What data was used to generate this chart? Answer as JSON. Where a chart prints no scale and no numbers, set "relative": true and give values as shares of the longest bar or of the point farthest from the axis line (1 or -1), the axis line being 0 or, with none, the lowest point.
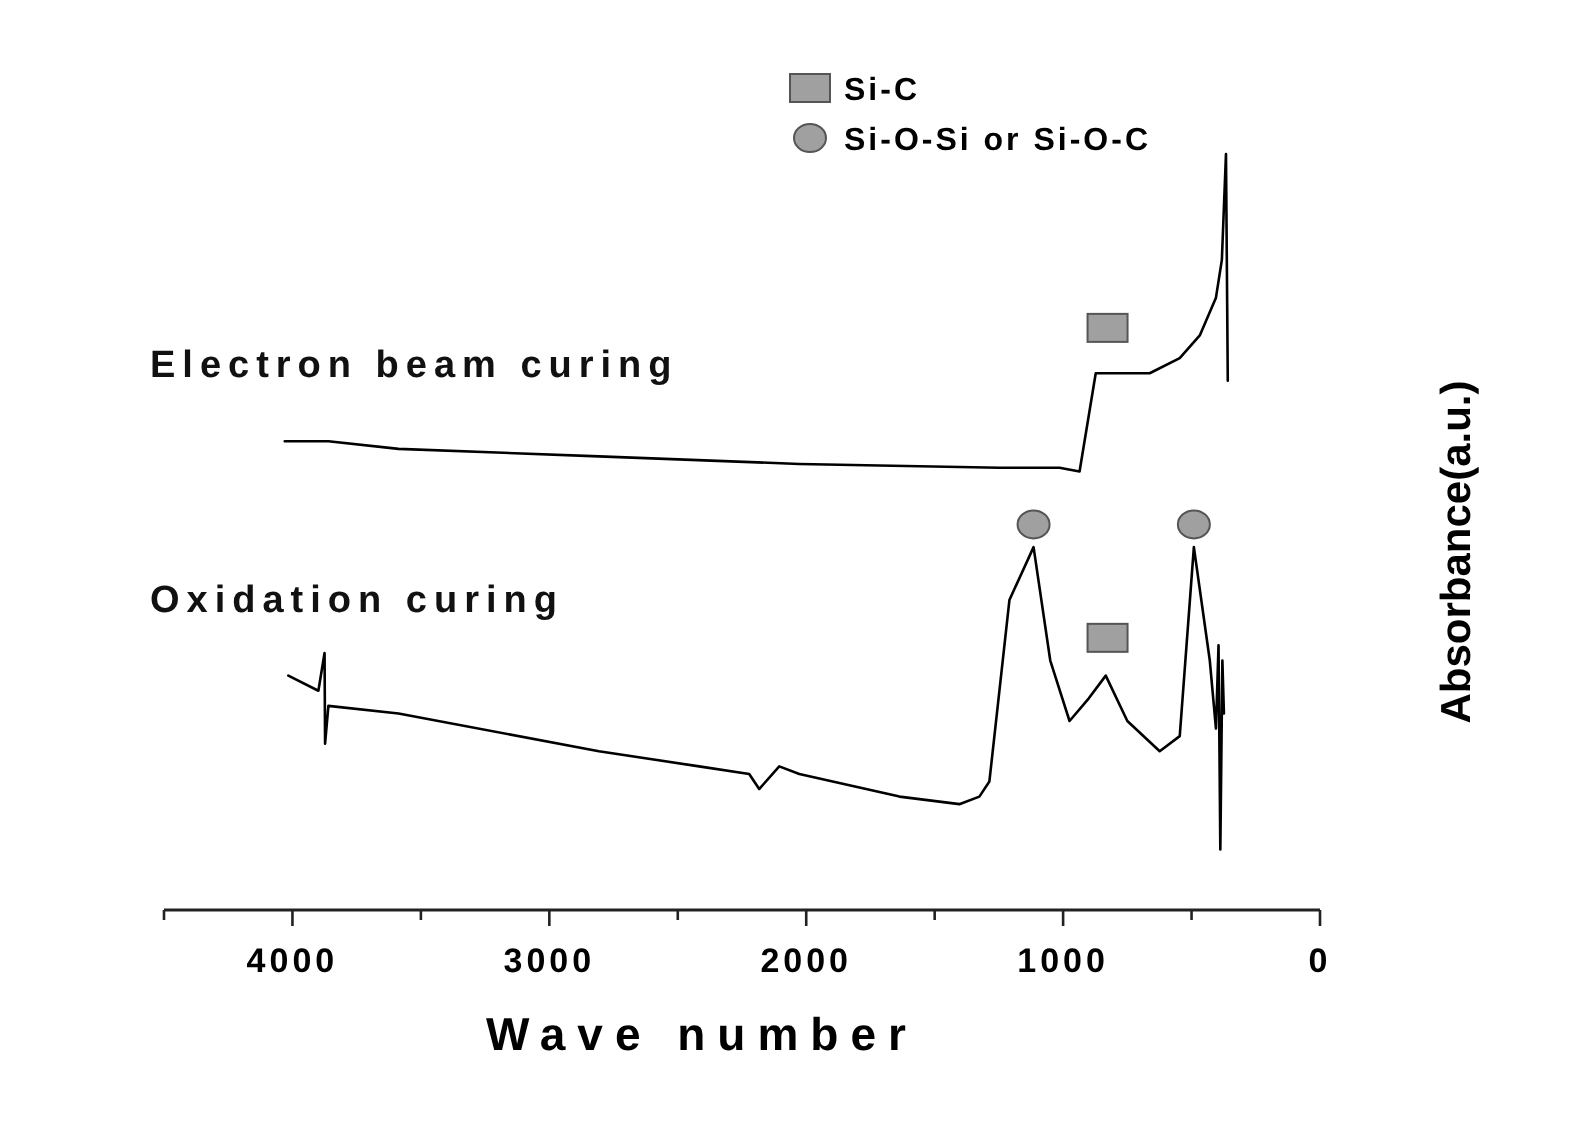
{
  "chart_data": {
    "type": "line",
    "relative": true,
    "xlabel": "Wave number",
    "ylabel": "Absorbance(a.u.)",
    "xlim": [
      4500,
      0
    ],
    "xticks": [
      {
        "value": 4500,
        "label": null
      },
      4000,
      {
        "value": 3500,
        "label": null
      },
      3000,
      {
        "value": 2500,
        "label": null
      },
      2000,
      {
        "value": 1500,
        "label": null
      },
      1000,
      {
        "value": 500,
        "label": null
      },
      0
    ],
    "legend": "top",
    "grid": false,
    "series": [
      {
        "name": "Electron beam curing",
        "color": "#000000",
        "x": [
          4030,
          3860,
          3587,
          2807,
          2027,
          1248,
          1014,
          936,
          873,
          780,
          663,
          546,
          468,
          405,
          382,
          366,
          359
        ],
        "values": [
          0.62,
          0.62,
          0.61,
          0.6,
          0.59,
          0.585,
          0.585,
          0.58,
          0.71,
          0.71,
          0.71,
          0.73,
          0.76,
          0.81,
          0.86,
          1.0,
          0.7
        ]
      },
      {
        "name": "Oxidation curing",
        "color": "#000000",
        "x": [
          4016,
          3899,
          3875,
          3873,
          3860,
          3587,
          2807,
          2417,
          2222,
          2183,
          2105,
          2027,
          1637,
          1404,
          1326,
          1287,
          1209,
          1115,
          1050,
          975,
          900,
          834,
          750,
          624,
          546,
          491,
          429,
          405,
          395,
          388,
          380,
          374
        ],
        "values": [
          0.31,
          0.29,
          0.34,
          0.22,
          0.27,
          0.26,
          0.21,
          0.19,
          0.18,
          0.16,
          0.19,
          0.18,
          0.15,
          0.14,
          0.15,
          0.17,
          0.41,
          0.48,
          0.33,
          0.25,
          0.28,
          0.31,
          0.25,
          0.21,
          0.23,
          0.48,
          0.33,
          0.24,
          0.35,
          0.08,
          0.33,
          0.26
        ]
      },
      {
        "name": "Si-C",
        "type": "scatter",
        "marker": "square",
        "color": "#a0a0a0",
        "x": [
          827,
          827
        ],
        "values": [
          0.77,
          0.36
        ]
      },
      {
        "name": "Si-O-Si or Si-O-C",
        "type": "scatter",
        "marker": "circle",
        "color": "#a0a0a0",
        "x": [
          1115,
          491
        ],
        "values": [
          0.51,
          0.51
        ]
      }
    ]
  }
}
